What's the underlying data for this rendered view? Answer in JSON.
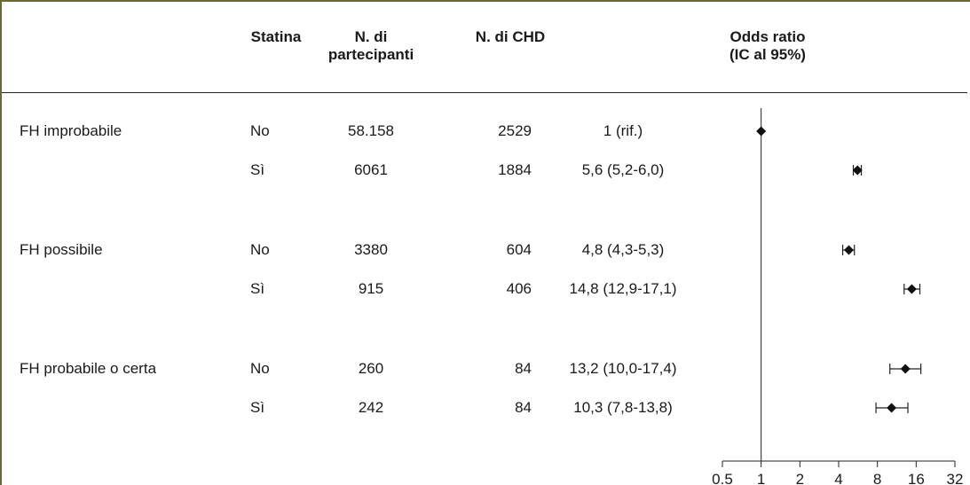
{
  "headers": {
    "statin": "Statina",
    "participants_l1": "N. di",
    "participants_l2": "partecipanti",
    "chd": "N. di CHD",
    "or_l1": "Odds ratio",
    "or_l2": "(IC al 95%)"
  },
  "rows": [
    {
      "group": "FH improbabile",
      "statin": "No",
      "participants": "58.158",
      "chd": "2529",
      "or_text": "1 (rif.)"
    },
    {
      "group": "",
      "statin": "Sì",
      "participants": "6061",
      "chd": "1884",
      "or_text": "5,6 (5,2-6,0)"
    },
    {
      "group": "FH possibile",
      "statin": "No",
      "participants": "3380",
      "chd": "604",
      "or_text": "4,8 (4,3-5,3)"
    },
    {
      "group": "",
      "statin": "Sì",
      "participants": "915",
      "chd": "406",
      "or_text": "14,8 (12,9-17,1)"
    },
    {
      "group": "FH probabile o certa",
      "statin": "No",
      "participants": "260",
      "chd": "84",
      "or_text": "13,2 (10,0-17,4)"
    },
    {
      "group": "",
      "statin": "Sì",
      "participants": "242",
      "chd": "84",
      "or_text": "10,3 (7,8-13,8)"
    }
  ],
  "chart_data": {
    "type": "scatter",
    "title": "Odds ratio (IC al 95%)",
    "xscale": "log2",
    "xlim": [
      0.5,
      32
    ],
    "xticks": [
      "0.5",
      "1",
      "2",
      "4",
      "8",
      "16",
      "32"
    ],
    "reference_line": 1,
    "series": [
      {
        "points": [
          {
            "label": "FH improbabile - No",
            "or": 1,
            "lo": 1,
            "hi": 1
          },
          {
            "label": "FH improbabile - Sì",
            "or": 5.6,
            "lo": 5.2,
            "hi": 6.0
          },
          {
            "label": "FH possibile - No",
            "or": 4.8,
            "lo": 4.3,
            "hi": 5.3
          },
          {
            "label": "FH possibile - Sì",
            "or": 14.8,
            "lo": 12.9,
            "hi": 17.1
          },
          {
            "label": "FH probabile o certa - No",
            "or": 13.2,
            "lo": 10.0,
            "hi": 17.4
          },
          {
            "label": "FH probabile o certa - Sì",
            "or": 10.3,
            "lo": 7.8,
            "hi": 13.8
          }
        ]
      }
    ]
  }
}
